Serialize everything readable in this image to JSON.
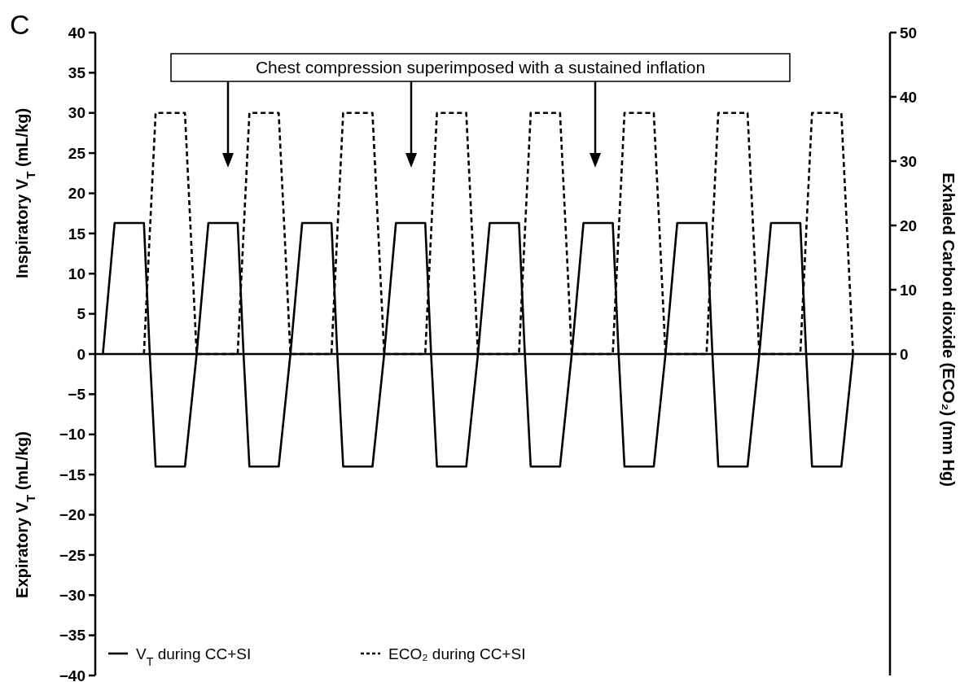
{
  "chart_data": {
    "type": "line",
    "categories": [
      null,
      null,
      null,
      null,
      null,
      null,
      null,
      null,
      null,
      null,
      null,
      null,
      null,
      null,
      null,
      null,
      null,
      null,
      null,
      null,
      null,
      null,
      null,
      null,
      null,
      null,
      null,
      null,
      null,
      null,
      null,
      null,
      null,
      null,
      null,
      null,
      null,
      null,
      null,
      null,
      null,
      null,
      null,
      null,
      null,
      null,
      null,
      null,
      null,
      null,
      null,
      null,
      null,
      null,
      null,
      null,
      null,
      null,
      null,
      null,
      null,
      null,
      null,
      null,
      null,
      null,
      null,
      null,
      null,
      null,
      null,
      null,
      null,
      null,
      null,
      null,
      null,
      null,
      null,
      null,
      null,
      null,
      null,
      null,
      null,
      null,
      null,
      null,
      null,
      null,
      null,
      null,
      null,
      null,
      null,
      null,
      null,
      null,
      null,
      null,
      null,
      null,
      null,
      null,
      null,
      null,
      null,
      null,
      null,
      null,
      null,
      null,
      null,
      null,
      null,
      null,
      null,
      null,
      null,
      null,
      null,
      null,
      null,
      null,
      null,
      null,
      null,
      null,
      null,
      null,
      null,
      null,
      null,
      null,
      null,
      null
    ],
    "series": [
      {
        "name": "V$_{T}$ during CC+SI",
        "color": "#000000",
        "line_style": "solid",
        "values": [
          null,
          0,
          8.2,
          16.3,
          16.3,
          16.3,
          16.3,
          16.3,
          16.3,
          0,
          -14,
          -14,
          -14,
          -14,
          -14,
          -14,
          -7,
          0,
          8.2,
          16.3,
          16.3,
          16.3,
          16.3,
          16.3,
          16.3,
          0,
          -14,
          -14,
          -14,
          -14,
          -14,
          -14,
          -7,
          0,
          8.2,
          16.3,
          16.3,
          16.3,
          16.3,
          16.3,
          16.3,
          0,
          -14,
          -14,
          -14,
          -14,
          -14,
          -14,
          -7,
          0,
          8.2,
          16.3,
          16.3,
          16.3,
          16.3,
          16.3,
          16.3,
          0,
          -14,
          -14,
          -14,
          -14,
          -14,
          -14,
          -7,
          0,
          8.2,
          16.3,
          16.3,
          16.3,
          16.3,
          16.3,
          16.3,
          0,
          -14,
          -14,
          -14,
          -14,
          -14,
          -14,
          -7,
          0,
          8.2,
          16.3,
          16.3,
          16.3,
          16.3,
          16.3,
          16.3,
          0,
          -14,
          -14,
          -14,
          -14,
          -14,
          -14,
          -7,
          0,
          8.2,
          16.3,
          16.3,
          16.3,
          16.3,
          16.3,
          16.3,
          0,
          -14,
          -14,
          -14,
          -14,
          -14,
          -14,
          -7,
          0,
          8.2,
          16.3,
          16.3,
          16.3,
          16.3,
          16.3,
          16.3,
          0,
          -14,
          -14,
          -14,
          -14,
          -14,
          -14,
          -7,
          0,
          null,
          null,
          null,
          null,
          null,
          null
        ]
      },
      {
        "name": "ECO₂ during CC+SI",
        "color": "#000000",
        "line_style": "dashed",
        "axis": "y2",
        "values": [
          null,
          null,
          null,
          null,
          null,
          null,
          null,
          null,
          0,
          18.8,
          37.5,
          37.5,
          37.5,
          37.5,
          37.5,
          37.5,
          18.8,
          0,
          0,
          0,
          0,
          0,
          0,
          0,
          0,
          18.8,
          37.5,
          37.5,
          37.5,
          37.5,
          37.5,
          37.5,
          18.8,
          0,
          0,
          0,
          0,
          0,
          0,
          0,
          0,
          18.8,
          37.5,
          37.5,
          37.5,
          37.5,
          37.5,
          37.5,
          18.8,
          0,
          0,
          0,
          0,
          0,
          0,
          0,
          0,
          18.8,
          37.5,
          37.5,
          37.5,
          37.5,
          37.5,
          37.5,
          18.8,
          0,
          0,
          0,
          0,
          0,
          0,
          0,
          0,
          18.8,
          37.5,
          37.5,
          37.5,
          37.5,
          37.5,
          37.5,
          18.8,
          0,
          0,
          0,
          0,
          0,
          0,
          0,
          0,
          18.8,
          37.5,
          37.5,
          37.5,
          37.5,
          37.5,
          37.5,
          18.8,
          0,
          0,
          0,
          0,
          0,
          0,
          0,
          0,
          18.8,
          37.5,
          37.5,
          37.5,
          37.5,
          37.5,
          37.5,
          18.8,
          0,
          0,
          0,
          0,
          0,
          0,
          0,
          0,
          18.8,
          37.5,
          37.5,
          37.5,
          37.5,
          37.5,
          37.5,
          18.8,
          0,
          null,
          null,
          null,
          null,
          null,
          null
        ]
      }
    ],
    "ylabel": "Inspiratory V$_{T}$ (mL/kg)",
    "y2label": "Exhaled Carbon dioxide (ECO₂) (mm Hg)",
    "ylim": [
      -40,
      40
    ],
    "yticks": [
      -40,
      -35,
      -30,
      -25,
      -20,
      -15,
      -10,
      -5,
      0,
      5,
      10,
      15,
      20,
      25,
      30,
      35,
      40
    ],
    "y2lim": [
      -50,
      50
    ],
    "y2ticks": [
      0,
      10,
      20,
      30,
      40,
      50
    ],
    "annotations": [
      "C",
      "Chest compression superimposed with a sustained inflation",
      "Expiratory V$_{T}$ (mL/kg)"
    ],
    "legend": "bottom left"
  }
}
